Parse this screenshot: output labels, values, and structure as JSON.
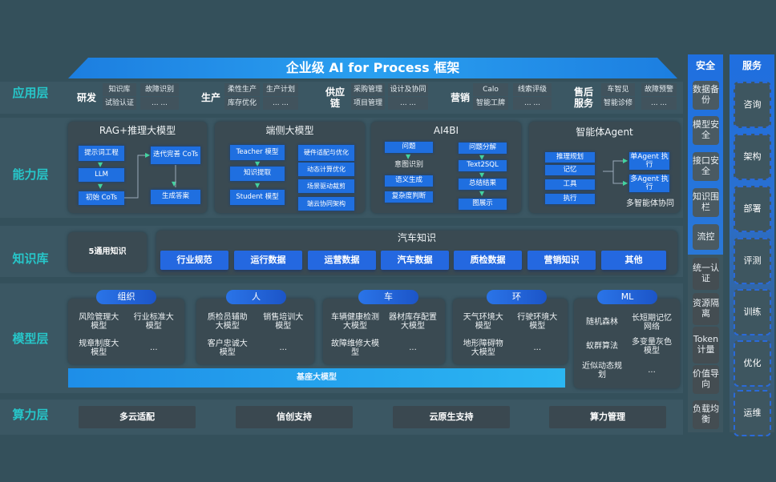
{
  "title": "企业级 AI for Process 框架",
  "colors": {
    "accent": "#1f6fe0",
    "layer_label": "#27c6c9",
    "background": "#34505b"
  },
  "layers": {
    "app": "应用层",
    "capability": "能力层",
    "knowledge": "知识库",
    "model": "模型层",
    "compute": "算力层"
  },
  "app_groups": [
    {
      "label": "研发",
      "items": [
        "知识库",
        "故障识别",
        "试验认证",
        "... ..."
      ]
    },
    {
      "label": "生产",
      "items": [
        "柔性生产",
        "生产计划",
        "库存优化",
        "... ..."
      ]
    },
    {
      "label": "供应链",
      "items": [
        "采购管理",
        "设计及协同",
        "项目管理",
        "... ..."
      ]
    },
    {
      "label": "营销",
      "items": [
        "Calo",
        "线索评级",
        "智能工牌",
        "... ..."
      ]
    },
    {
      "label": "售后服务",
      "items": [
        "车智见",
        "故障预警",
        "智能诊修",
        "... ..."
      ]
    }
  ],
  "capability": {
    "rag": {
      "title": "RAG+推理大模型",
      "items": [
        "提示词工程",
        "LLM",
        "初始 CoTs",
        "迭代完善 CoTs",
        "生成答案"
      ]
    },
    "edge": {
      "title": "端侧大模型",
      "items": [
        "Teacher 模型",
        "知识提取",
        "Student 模型",
        "硬件适配与优化",
        "动态计算优化",
        "场景驱动裁剪",
        "端云协同架构"
      ]
    },
    "ai4bi": {
      "title": "AI4BI",
      "items": [
        "问题",
        "意图识别",
        "语义生成",
        "复杂度判断",
        "问题分解",
        "Text2SQL",
        "总结结果",
        "图展示"
      ]
    },
    "agent": {
      "title": "智能体Agent",
      "items": [
        "推理规划",
        "记忆",
        "工具",
        "执行",
        "单Agent 执行",
        "多Agent 执行",
        "多智能体协同"
      ]
    }
  },
  "knowledge": {
    "general": "5通用知识",
    "auto_title": "汽车知识",
    "chips": [
      "行业规范",
      "运行数据",
      "运营数据",
      "汽车数据",
      "质检数据",
      "营销知识",
      "其他"
    ]
  },
  "models": [
    {
      "label": "组织",
      "items": [
        "风险管理大模型",
        "行业标准大模型",
        "规章制度大模型",
        "..."
      ]
    },
    {
      "label": "人",
      "items": [
        "质检员辅助大模型",
        "销售培训大模型",
        "客户忠诚大模型",
        "..."
      ]
    },
    {
      "label": "车",
      "items": [
        "车辆健康检测大模型",
        "器材库存配置大模型",
        "故障维修大模型",
        "..."
      ]
    },
    {
      "label": "环",
      "items": [
        "天气环境大模型",
        "行驶环境大模型",
        "地形障碍物大模型",
        "..."
      ]
    },
    {
      "label": "ML",
      "items": [
        "随机森林",
        "长短期记忆网络",
        "蚁群算法",
        "多变量灰色模型",
        "近似动态规划",
        "..."
      ]
    }
  ],
  "base_model": "基座大模型",
  "compute": [
    "多云适配",
    "信创支持",
    "云原生支持",
    "算力管理"
  ],
  "security": {
    "title": "安全",
    "items": [
      "数据备份",
      "模型安全",
      "接口安全",
      "知识围栏",
      "流控",
      "统一认证",
      "资源隔离",
      "Token计量",
      "价值导向",
      "负载均衡"
    ]
  },
  "service": {
    "title": "服务",
    "items": [
      "咨询",
      "架构",
      "部署",
      "评测",
      "训练",
      "优化",
      "运维"
    ]
  }
}
